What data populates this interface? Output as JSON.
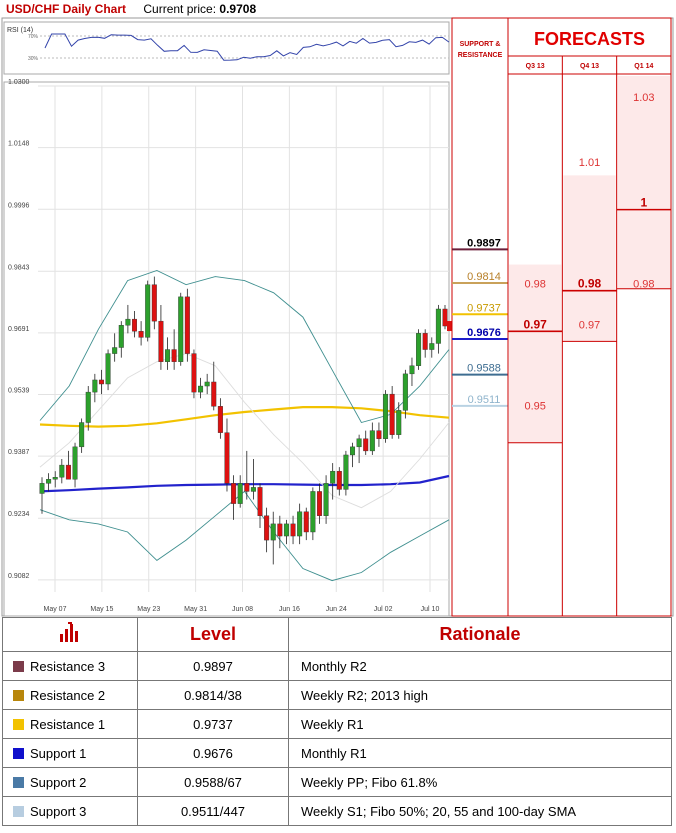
{
  "header": {
    "title": "USD/CHF Daily Chart",
    "price_label": "Current price:",
    "price_value": "0.9708"
  },
  "chart_data": {
    "type": "candlestick",
    "title": "USD/CHF Daily Chart",
    "current_price": 0.9708,
    "price_ticks": [
      "1.0300",
      "1.0148",
      "0.9996",
      "0.9843",
      "0.9691",
      "0.9539",
      "0.9387",
      "0.9234",
      "0.9082"
    ],
    "ylim": [
      0.9052,
      1.03
    ],
    "date_ticks": [
      "May 07",
      "May 15",
      "May 23",
      "May 31",
      "Jun 08",
      "Jun 16",
      "Jun 24",
      "Jul 02",
      "Jul 10"
    ],
    "grid": true,
    "rsi_panel": {
      "label": "RSI (14)",
      "levels": [
        "70%",
        "30%"
      ]
    },
    "candles": [
      {
        "o": 0.9295,
        "h": 0.9335,
        "l": 0.9245,
        "c": 0.932
      },
      {
        "o": 0.932,
        "h": 0.9345,
        "l": 0.93,
        "c": 0.933
      },
      {
        "o": 0.933,
        "h": 0.935,
        "l": 0.931,
        "c": 0.9335
      },
      {
        "o": 0.9335,
        "h": 0.938,
        "l": 0.932,
        "c": 0.9365
      },
      {
        "o": 0.9365,
        "h": 0.94,
        "l": 0.934,
        "c": 0.933
      },
      {
        "o": 0.933,
        "h": 0.942,
        "l": 0.931,
        "c": 0.941
      },
      {
        "o": 0.941,
        "h": 0.948,
        "l": 0.9395,
        "c": 0.947
      },
      {
        "o": 0.947,
        "h": 0.956,
        "l": 0.945,
        "c": 0.9545
      },
      {
        "o": 0.9545,
        "h": 0.959,
        "l": 0.952,
        "c": 0.9575
      },
      {
        "o": 0.9575,
        "h": 0.96,
        "l": 0.954,
        "c": 0.9565
      },
      {
        "o": 0.9565,
        "h": 0.965,
        "l": 0.955,
        "c": 0.964
      },
      {
        "o": 0.964,
        "h": 0.969,
        "l": 0.962,
        "c": 0.9655
      },
      {
        "o": 0.9655,
        "h": 0.972,
        "l": 0.963,
        "c": 0.971
      },
      {
        "o": 0.971,
        "h": 0.976,
        "l": 0.969,
        "c": 0.9725
      },
      {
        "o": 0.9725,
        "h": 0.9745,
        "l": 0.968,
        "c": 0.9695
      },
      {
        "o": 0.9695,
        "h": 0.972,
        "l": 0.966,
        "c": 0.968
      },
      {
        "o": 0.968,
        "h": 0.982,
        "l": 0.967,
        "c": 0.981
      },
      {
        "o": 0.981,
        "h": 0.983,
        "l": 0.97,
        "c": 0.972
      },
      {
        "o": 0.972,
        "h": 0.976,
        "l": 0.96,
        "c": 0.962
      },
      {
        "o": 0.962,
        "h": 0.968,
        "l": 0.96,
        "c": 0.965
      },
      {
        "o": 0.965,
        "h": 0.97,
        "l": 0.96,
        "c": 0.962
      },
      {
        "o": 0.962,
        "h": 0.979,
        "l": 0.961,
        "c": 0.978
      },
      {
        "o": 0.978,
        "h": 0.98,
        "l": 0.962,
        "c": 0.964
      },
      {
        "o": 0.964,
        "h": 0.965,
        "l": 0.953,
        "c": 0.9545
      },
      {
        "o": 0.9545,
        "h": 0.958,
        "l": 0.953,
        "c": 0.956
      },
      {
        "o": 0.956,
        "h": 0.959,
        "l": 0.954,
        "c": 0.957
      },
      {
        "o": 0.957,
        "h": 0.962,
        "l": 0.95,
        "c": 0.951
      },
      {
        "o": 0.951,
        "h": 0.953,
        "l": 0.943,
        "c": 0.9445
      },
      {
        "o": 0.9445,
        "h": 0.948,
        "l": 0.93,
        "c": 0.932
      },
      {
        "o": 0.932,
        "h": 0.934,
        "l": 0.923,
        "c": 0.927
      },
      {
        "o": 0.927,
        "h": 0.934,
        "l": 0.926,
        "c": 0.932
      },
      {
        "o": 0.932,
        "h": 0.94,
        "l": 0.928,
        "c": 0.93
      },
      {
        "o": 0.93,
        "h": 0.938,
        "l": 0.928,
        "c": 0.931
      },
      {
        "o": 0.931,
        "h": 0.932,
        "l": 0.921,
        "c": 0.924
      },
      {
        "o": 0.924,
        "h": 0.926,
        "l": 0.915,
        "c": 0.918
      },
      {
        "o": 0.918,
        "h": 0.925,
        "l": 0.912,
        "c": 0.922
      },
      {
        "o": 0.922,
        "h": 0.924,
        "l": 0.916,
        "c": 0.919
      },
      {
        "o": 0.919,
        "h": 0.923,
        "l": 0.917,
        "c": 0.922
      },
      {
        "o": 0.922,
        "h": 0.924,
        "l": 0.917,
        "c": 0.919
      },
      {
        "o": 0.919,
        "h": 0.927,
        "l": 0.917,
        "c": 0.925
      },
      {
        "o": 0.925,
        "h": 0.926,
        "l": 0.918,
        "c": 0.92
      },
      {
        "o": 0.92,
        "h": 0.931,
        "l": 0.918,
        "c": 0.93
      },
      {
        "o": 0.93,
        "h": 0.932,
        "l": 0.922,
        "c": 0.924
      },
      {
        "o": 0.924,
        "h": 0.934,
        "l": 0.922,
        "c": 0.932
      },
      {
        "o": 0.932,
        "h": 0.937,
        "l": 0.928,
        "c": 0.935
      },
      {
        "o": 0.935,
        "h": 0.936,
        "l": 0.929,
        "c": 0.9305
      },
      {
        "o": 0.9305,
        "h": 0.94,
        "l": 0.929,
        "c": 0.939
      },
      {
        "o": 0.939,
        "h": 0.942,
        "l": 0.936,
        "c": 0.941
      },
      {
        "o": 0.941,
        "h": 0.944,
        "l": 0.937,
        "c": 0.943
      },
      {
        "o": 0.943,
        "h": 0.945,
        "l": 0.939,
        "c": 0.94
      },
      {
        "o": 0.94,
        "h": 0.947,
        "l": 0.939,
        "c": 0.945
      },
      {
        "o": 0.945,
        "h": 0.947,
        "l": 0.941,
        "c": 0.943
      },
      {
        "o": 0.943,
        "h": 0.955,
        "l": 0.942,
        "c": 0.954
      },
      {
        "o": 0.954,
        "h": 0.956,
        "l": 0.943,
        "c": 0.944
      },
      {
        "o": 0.944,
        "h": 0.952,
        "l": 0.943,
        "c": 0.95
      },
      {
        "o": 0.95,
        "h": 0.96,
        "l": 0.948,
        "c": 0.959
      },
      {
        "o": 0.959,
        "h": 0.963,
        "l": 0.956,
        "c": 0.961
      },
      {
        "o": 0.961,
        "h": 0.97,
        "l": 0.96,
        "c": 0.969
      },
      {
        "o": 0.969,
        "h": 0.97,
        "l": 0.963,
        "c": 0.965
      },
      {
        "o": 0.965,
        "h": 0.968,
        "l": 0.963,
        "c": 0.9665
      },
      {
        "o": 0.9665,
        "h": 0.976,
        "l": 0.964,
        "c": 0.975
      },
      {
        "o": 0.975,
        "h": 0.976,
        "l": 0.97,
        "c": 0.9708
      }
    ],
    "indicators": [
      {
        "color": "#f2c200",
        "name": "",
        "points": [
          0.9465,
          0.9462,
          0.946,
          0.9462,
          0.9468,
          0.9478,
          0.9488,
          0.9496,
          0.9502,
          0.9508,
          0.9508,
          0.9505,
          0.9498,
          0.9488,
          0.9482
        ]
      },
      {
        "color": "#2222cc",
        "name": "",
        "points": [
          0.93,
          0.9303,
          0.9307,
          0.931,
          0.9314,
          0.9316,
          0.9317,
          0.9318,
          0.9318,
          0.9317,
          0.9316,
          0.9316,
          0.9318,
          0.9322,
          0.9338
        ]
      },
      {
        "color": "#3f8f8f",
        "name": "",
        "points": [
          0.9475,
          0.956,
          0.97,
          0.982,
          0.9845,
          0.981,
          0.983,
          0.982,
          0.979,
          0.973,
          0.96,
          0.947,
          0.949,
          0.956,
          0.965
        ]
      },
      {
        "color": "#3f8f8f",
        "name": "",
        "points": [
          0.9255,
          0.923,
          0.922,
          0.92,
          0.913,
          0.918,
          0.924,
          0.93,
          0.92,
          0.911,
          0.908,
          0.91,
          0.915,
          0.919,
          0.923
        ]
      },
      {
        "color": "#dddddd",
        "name": "",
        "points": [
          0.936,
          0.942,
          0.95,
          0.958,
          0.962,
          0.964,
          0.961,
          0.952,
          0.944,
          0.937,
          0.929,
          0.926,
          0.93,
          0.938,
          0.947
        ]
      }
    ]
  },
  "sr_header": "SUPPORT & RESISTANCE",
  "sr_levels": [
    {
      "value": "0.9897",
      "num": 0.9897,
      "color": "#6b1f3a",
      "text_color": "#000000",
      "bold": true
    },
    {
      "value": "0.9814",
      "num": 0.9814,
      "color": "#c9a15a",
      "text_color": "#b8802a",
      "bold": false
    },
    {
      "value": "0.9737",
      "num": 0.9737,
      "color": "#f2c200",
      "text_color": "#c89a00",
      "bold": false
    },
    {
      "value": "0.9676",
      "num": 0.9676,
      "color": "#1c1ccc",
      "text_color": "#0000aa",
      "bold": true
    },
    {
      "value": "0.9588",
      "num": 0.9588,
      "color": "#3e6d91",
      "text_color": "#3e6d91",
      "bold": false
    },
    {
      "value": "0.9511",
      "num": 0.9511,
      "color": "#b9d2e3",
      "text_color": "#8fb4cc",
      "bold": false
    }
  ],
  "forecasts": {
    "title": "FORECASTS",
    "columns": [
      {
        "label": "Q3 13",
        "box_top": 0.983,
        "box_bottom": 0.942,
        "values": [
          {
            "text": "0.98",
            "num": 0.98,
            "bold": false
          },
          {
            "text": "0.97",
            "num": 0.97,
            "bold": true
          },
          {
            "text": "0.95",
            "num": 0.95,
            "bold": false
          }
        ]
      },
      {
        "label": "Q4 13",
        "box_top": 1.005,
        "box_bottom": 0.967,
        "values": [
          {
            "text": "1.01",
            "num": 1.01,
            "bold": false
          },
          {
            "text": "0.98",
            "num": 0.98,
            "bold": true
          },
          {
            "text": "0.97",
            "num": 0.97,
            "bold": false
          }
        ]
      },
      {
        "label": "Q1 14",
        "box_top": 1.03,
        "box_bottom": 0.98,
        "values": [
          {
            "text": "1.03",
            "num": 1.03,
            "bold": false
          },
          {
            "text": "1",
            "num": 1.0,
            "bold": true
          },
          {
            "text": "0.98",
            "num": 0.98,
            "bold": false
          }
        ]
      }
    ]
  },
  "table": {
    "headers": {
      "level": "Level",
      "rationale": "Rationale"
    },
    "icon": "bar-chart-icon",
    "rows": [
      {
        "label": "Resistance 3",
        "level": "0.9897",
        "rationale": "Monthly R2",
        "swatch": "#7b3b4a"
      },
      {
        "label": "Resistance 2",
        "level": "0.9814/38",
        "rationale": "Weekly R2; 2013 high",
        "swatch": "#b8860b"
      },
      {
        "label": "Resistance 1",
        "level": "0.9737",
        "rationale": "Weekly R1",
        "swatch": "#f2c200"
      },
      {
        "label": "Support 1",
        "level": "0.9676",
        "rationale": "Monthly R1",
        "swatch": "#1010cc"
      },
      {
        "label": "Support 2",
        "level": "0.9588/67",
        "rationale": "Weekly PP; Fibo 61.8%",
        "swatch": "#4a7aa6"
      },
      {
        "label": "Support 3",
        "level": "0.9511/447",
        "rationale": "Weekly S1; Fibo 50%; 20, 55 and 100-day SMA",
        "swatch": "#b7cde0"
      }
    ]
  }
}
